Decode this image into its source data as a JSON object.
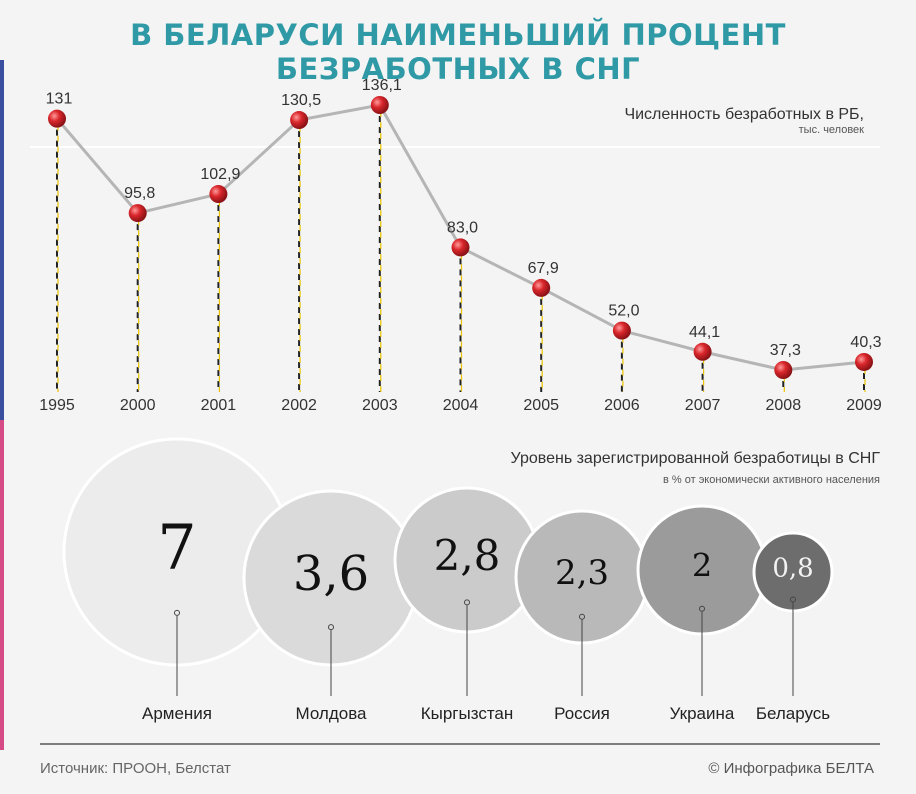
{
  "title": "В БЕЛАРУСИ НАИМЕНЬШИЙ ПРОЦЕНТ БЕЗРАБОТНЫХ В СНГ",
  "footer": {
    "source": "Источник: ПРООН, Белстат",
    "credit": "© Инфографика БЕЛТА"
  },
  "colors": {
    "title": "#2f9aa6",
    "marker": "#d9262b",
    "line": "#b5b5b5",
    "dash": "#e8c200",
    "accent_top": "#3a4fa0",
    "accent_bottom": "#d64a86"
  },
  "chart_data": [
    {
      "type": "line",
      "title": "Численность безработных в РБ,",
      "unit": "тыс. человек",
      "categories": [
        "1995",
        "2000",
        "2001",
        "2002",
        "2003",
        "2004",
        "2005",
        "2006",
        "2007",
        "2008",
        "2009"
      ],
      "values": [
        131,
        95.8,
        102.9,
        130.5,
        136.1,
        83.0,
        67.9,
        52.0,
        44.1,
        37.3,
        40.3
      ],
      "value_labels": [
        "131",
        "95,8",
        "102,9",
        "130,5",
        "136,1",
        "83,0",
        "67,9",
        "52,0",
        "44,1",
        "37,3",
        "40,3"
      ],
      "grid": false
    },
    {
      "type": "bubble",
      "title": "Уровень зарегистрированной безработицы в СНГ",
      "unit": "в % от экономически активного населения",
      "categories": [
        "Армения",
        "Молдова",
        "Кыргызстан",
        "Россия",
        "Украина",
        "Беларусь"
      ],
      "values": [
        7,
        3.6,
        2.8,
        2.3,
        2,
        0.8
      ],
      "value_labels": [
        "7",
        "3,6",
        "2,8",
        "2,3",
        "2",
        "0,8"
      ]
    }
  ]
}
